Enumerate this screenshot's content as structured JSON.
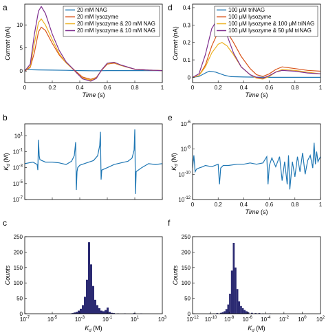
{
  "panels": [
    {
      "letter": "a"
    },
    {
      "letter": "b"
    },
    {
      "letter": "c"
    },
    {
      "letter": "d"
    },
    {
      "letter": "e"
    },
    {
      "letter": "f"
    }
  ],
  "colors": {
    "blue": "#1f77b4",
    "red": "#d9541a",
    "orange": "#edb120",
    "purple": "#7e2f8e",
    "bars": "#2b2a72"
  },
  "chart_data": [
    {
      "id": "a",
      "type": "line",
      "xlabel": "Time (s)",
      "ylabel": "Current (nA)",
      "xlim": [
        0,
        1
      ],
      "ylim": [
        -2.5,
        14.5
      ],
      "xticks": [
        "0",
        "0.2",
        "0.4",
        "0.6",
        "0.8",
        "1"
      ],
      "yticks": [
        "0",
        "5",
        "10"
      ],
      "legend_position": "top-right",
      "series": [
        {
          "name": "20 mM NAG",
          "color": "#1f77b4",
          "x": [
            0,
            0.1,
            0.2,
            0.3,
            0.4,
            0.5,
            0.6,
            0.7,
            0.8,
            0.9,
            1.0
          ],
          "y": [
            0.3,
            0.25,
            0.2,
            0.15,
            0.1,
            0.05,
            0.1,
            0.1,
            0.1,
            0.1,
            0.1
          ]
        },
        {
          "name": "20 mM lysozyme",
          "color": "#d9541a",
          "x": [
            0,
            0.04,
            0.07,
            0.1,
            0.12,
            0.15,
            0.2,
            0.25,
            0.3,
            0.35,
            0.38,
            0.42,
            0.48,
            0.52,
            0.56,
            0.6,
            0.65,
            0.7,
            0.8,
            0.9,
            1.0
          ],
          "y": [
            0,
            0.8,
            4,
            8.5,
            9.5,
            8.8,
            6,
            3.5,
            1.8,
            0.5,
            -0.3,
            -1.3,
            -1.8,
            -1.4,
            0.2,
            1.5,
            1.7,
            1.2,
            0.4,
            0.2,
            0.1
          ]
        },
        {
          "name": "20 mM lysozyme & 20 mM NAG",
          "color": "#edb120",
          "x": [
            0,
            0.04,
            0.07,
            0.1,
            0.12,
            0.15,
            0.2,
            0.25,
            0.3,
            0.35,
            0.38,
            0.42,
            0.48,
            0.52,
            0.56,
            0.6,
            0.65,
            0.7,
            0.8,
            0.9,
            1.0
          ],
          "y": [
            0,
            1,
            6,
            10.5,
            11.3,
            10,
            6.8,
            3.8,
            1.8,
            0.4,
            -0.5,
            -1.5,
            -2,
            -1.5,
            0.3,
            1.6,
            1.8,
            1.2,
            0.4,
            0.2,
            0.1
          ]
        },
        {
          "name": "20 mM lysozyme & 10 mM NAG",
          "color": "#7e2f8e",
          "x": [
            0,
            0.04,
            0.07,
            0.1,
            0.12,
            0.15,
            0.2,
            0.25,
            0.3,
            0.35,
            0.38,
            0.42,
            0.48,
            0.52,
            0.56,
            0.6,
            0.65,
            0.7,
            0.8,
            0.9,
            1.0
          ],
          "y": [
            0,
            1.5,
            8,
            13,
            14,
            12.5,
            8,
            4.5,
            2,
            0.5,
            -0.5,
            -1.7,
            -2.2,
            -1.6,
            0.3,
            1.7,
            1.9,
            1.3,
            0.4,
            0.2,
            0.1
          ]
        }
      ]
    },
    {
      "id": "d",
      "type": "line",
      "xlabel": "Time (s)",
      "ylabel": "Current (nA)",
      "xlim": [
        0,
        1
      ],
      "ylim": [
        -0.03,
        0.42
      ],
      "xticks": [
        "0",
        "0.2",
        "0.4",
        "0.6",
        "0.8",
        "1"
      ],
      "yticks": [
        "0",
        "0.1",
        "0.2",
        "0.3",
        "0.4"
      ],
      "legend_position": "top-right",
      "series": [
        {
          "name": "100 μM triNAG",
          "color": "#1f77b4",
          "x": [
            0,
            0.05,
            0.1,
            0.13,
            0.18,
            0.25,
            0.3,
            0.4,
            0.5,
            0.6,
            0.7,
            0.8,
            0.9,
            1.0
          ],
          "y": [
            0,
            0.005,
            0.025,
            0.035,
            0.03,
            0.012,
            0.004,
            0.002,
            0.001,
            0,
            0,
            0,
            0,
            0
          ]
        },
        {
          "name": "100 μM lysozyme",
          "color": "#d9541a",
          "x": [
            0,
            0.05,
            0.1,
            0.15,
            0.2,
            0.23,
            0.27,
            0.32,
            0.38,
            0.45,
            0.5,
            0.55,
            0.6,
            0.65,
            0.7,
            0.8,
            0.9,
            1.0
          ],
          "y": [
            0,
            0.01,
            0.07,
            0.18,
            0.26,
            0.28,
            0.26,
            0.2,
            0.12,
            0.05,
            0.015,
            0.005,
            0.02,
            0.045,
            0.06,
            0.05,
            0.04,
            0.035
          ]
        },
        {
          "name": "100 μM lysozyme & 100 μM triNAG",
          "color": "#edb120",
          "x": [
            0,
            0.05,
            0.1,
            0.15,
            0.2,
            0.23,
            0.27,
            0.32,
            0.38,
            0.45,
            0.5,
            0.55,
            0.6,
            0.65,
            0.7,
            0.8,
            0.9,
            1.0
          ],
          "y": [
            0,
            0.01,
            0.06,
            0.14,
            0.19,
            0.2,
            0.18,
            0.13,
            0.06,
            0.015,
            -0.005,
            -0.01,
            0.005,
            0.03,
            0.045,
            0.04,
            0.03,
            0.02
          ]
        },
        {
          "name": "100 μM lysozyme & 50 μM triNAG",
          "color": "#7e2f8e",
          "x": [
            0,
            0.05,
            0.1,
            0.15,
            0.2,
            0.23,
            0.27,
            0.32,
            0.38,
            0.45,
            0.5,
            0.55,
            0.6,
            0.65,
            0.7,
            0.8,
            0.9,
            1.0
          ],
          "y": [
            0,
            0.02,
            0.13,
            0.28,
            0.34,
            0.32,
            0.24,
            0.14,
            0.06,
            0.015,
            0,
            -0.005,
            0.01,
            0.03,
            0.04,
            0.035,
            0.025,
            0.02
          ]
        }
      ]
    },
    {
      "id": "b",
      "type": "line",
      "xlabel": "",
      "ylabel": "K_d (M)",
      "xlim": [
        0,
        1
      ],
      "ylog": true,
      "ylim_exp": [
        -7,
        2.5
      ],
      "xticks": [],
      "yticks_exp": [
        1,
        -1,
        -3,
        -5,
        -7
      ],
      "series": [
        {
          "name": "",
          "color": "#1f77b4",
          "x": [
            0,
            0.03,
            0.06,
            0.09,
            0.095,
            0.1,
            0.105,
            0.11,
            0.15,
            0.2,
            0.25,
            0.3,
            0.34,
            0.36,
            0.37,
            0.375,
            0.38,
            0.385,
            0.4,
            0.45,
            0.5,
            0.53,
            0.545,
            0.55,
            0.555,
            0.56,
            0.6,
            0.65,
            0.7,
            0.75,
            0.78,
            0.795,
            0.8,
            0.805,
            0.81,
            0.85,
            0.9,
            0.95,
            1.0
          ],
          "y_exp": [
            -2.5,
            -2.4,
            -2.3,
            -2.6,
            -3.3,
            0.5,
            -1.5,
            -2,
            -2.3,
            -2.3,
            -2.4,
            -2.6,
            -2.2,
            -1.5,
            0.2,
            -5.8,
            -3.5,
            -3,
            -2.7,
            -2.4,
            -2.1,
            -1.5,
            -0.2,
            1.5,
            -4.5,
            -3.3,
            -3,
            -2.6,
            -2.4,
            -2.2,
            -1.8,
            -0.8,
            1.8,
            -6.3,
            -3.5,
            -3,
            -2.5,
            -2.6,
            -2.5
          ]
        }
      ]
    },
    {
      "id": "e",
      "type": "line",
      "xlabel": "Time (s)",
      "ylabel": "K_d (M)",
      "xlim": [
        0,
        1
      ],
      "ylog": true,
      "ylim_exp": [
        -12,
        -6
      ],
      "xticks": [
        "0",
        "0.2",
        "0.4",
        "0.6",
        "0.8",
        "1"
      ],
      "yticks_exp": [
        -6,
        -8,
        -10,
        -12
      ],
      "series": [
        {
          "name": "",
          "color": "#1f77b4",
          "x": [
            0,
            0.01,
            0.02,
            0.03,
            0.05,
            0.08,
            0.1,
            0.15,
            0.2,
            0.21,
            0.22,
            0.23,
            0.24,
            0.28,
            0.35,
            0.4,
            0.45,
            0.5,
            0.55,
            0.58,
            0.59,
            0.6,
            0.62,
            0.65,
            0.68,
            0.7,
            0.72,
            0.74,
            0.75,
            0.76,
            0.78,
            0.8,
            0.82,
            0.84,
            0.86,
            0.88,
            0.9,
            0.92,
            0.94,
            0.95,
            0.96,
            0.97,
            0.98,
            1.0
          ],
          "y_exp": [
            -9.5,
            -8.5,
            -9.8,
            -9.6,
            -9.5,
            -9.4,
            -9.3,
            -9.4,
            -9.2,
            -10.8,
            -9.5,
            -9.4,
            -9.3,
            -9.3,
            -9.2,
            -9.2,
            -9.1,
            -9.2,
            -9.1,
            -8.6,
            -10.8,
            -9.3,
            -8.7,
            -9.4,
            -8.6,
            -10.5,
            -9,
            -10.8,
            -8.5,
            -11.2,
            -9,
            -10.2,
            -8.6,
            -9.8,
            -8.3,
            -10,
            -8.9,
            -8.5,
            -9.5,
            -7.5,
            -9.2,
            -8.2,
            -9,
            -8.6
          ]
        }
      ]
    },
    {
      "id": "c",
      "type": "bar",
      "subtype": "histogram",
      "xlabel": "K_d (M)",
      "ylabel": "Counts",
      "xlog": true,
      "xlim_exp": [
        -7,
        3
      ],
      "ylim": [
        0,
        250
      ],
      "xticks_exp": [
        -7,
        -5,
        -3,
        -1,
        1,
        3
      ],
      "yticks": [
        0,
        50,
        100,
        150,
        200,
        250
      ],
      "bins_exp": [
        -3.6,
        -3.45,
        -3.3,
        -3.15,
        -3.0,
        -2.85,
        -2.7,
        -2.55,
        -2.4,
        -2.25,
        -2.1,
        -1.95,
        -1.8,
        -1.65,
        -1.5,
        -1.35,
        -1.2,
        -1.05,
        -0.9,
        -0.75,
        -0.6,
        -0.3,
        0.2,
        0.9,
        1.4
      ],
      "values": [
        2,
        4,
        6,
        10,
        16,
        28,
        55,
        110,
        232,
        160,
        90,
        45,
        28,
        18,
        10,
        8,
        12,
        20,
        6,
        3,
        2,
        1,
        1,
        2,
        1
      ]
    },
    {
      "id": "f",
      "type": "bar",
      "subtype": "histogram",
      "xlabel": "K_d (M)",
      "ylabel": "Counts",
      "xlog": true,
      "xlim_exp": [
        -12,
        2
      ],
      "ylim": [
        0,
        250
      ],
      "xticks_exp": [
        -12,
        -10,
        -8,
        -6,
        -4,
        -2,
        0,
        2
      ],
      "yticks": [
        0,
        50,
        100,
        150,
        200,
        250
      ],
      "bins_exp": [
        -10.2,
        -9.8,
        -9.4,
        -9.0,
        -8.8,
        -8.6,
        -8.4,
        -8.2,
        -8.0,
        -7.8,
        -7.6,
        -7.4,
        -7.2,
        -7.0,
        -6.8,
        -6.6,
        -6.4,
        -6.2,
        -6.0,
        -5.6,
        -5.2,
        -4.8,
        -4.4,
        -3.6
      ],
      "values": [
        1,
        1,
        2,
        3,
        5,
        8,
        15,
        30,
        65,
        140,
        230,
        150,
        80,
        40,
        25,
        18,
        12,
        8,
        5,
        3,
        2,
        2,
        1,
        1
      ]
    }
  ]
}
